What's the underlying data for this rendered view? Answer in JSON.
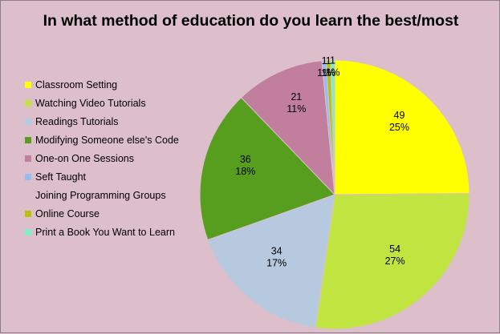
{
  "chart_data": {
    "type": "pie",
    "title": "In what method of education do you learn the best/most",
    "legend_position": "left",
    "slices": [
      {
        "name": "Classroom Setting",
        "value": 49,
        "percent": "25%",
        "color": "#ffff00",
        "value_label": "49",
        "percent_label": "25%"
      },
      {
        "name": "Watching Video Tutorials",
        "value": 54,
        "percent": "27%",
        "color": "#c0e540",
        "value_label": "54",
        "percent_label": "27%"
      },
      {
        "name": "Readings Tutorials",
        "value": 34,
        "percent": "17%",
        "color": "#b7c9df",
        "value_label": "34",
        "percent_label": "17%"
      },
      {
        "name": "Modifying Someone else's Code",
        "value": 36,
        "percent": "18%",
        "color": "#579e1e",
        "value_label": "36",
        "percent_label": "18%"
      },
      {
        "name": "One-on One Sessions",
        "value": 21,
        "percent": "11%",
        "color": "#c17e9d",
        "value_label": "21",
        "percent_label": "11%"
      },
      {
        "name": "Seft Taught",
        "value": 1,
        "percent": "1%",
        "color": "#93bff0",
        "value_label": "1",
        "percent_label": "1%"
      },
      {
        "name": "Joining Programming Groups",
        "value": 0,
        "percent": "0%",
        "color": "#dcbfca",
        "value_label": "",
        "percent_label": ""
      },
      {
        "name": "Online Course",
        "value": 1,
        "percent": "1%",
        "color": "#b5c40a",
        "value_label": "1",
        "percent_label": "1%"
      },
      {
        "name": "Print a Book You Want to Learn",
        "value": 1,
        "percent": "1%",
        "color": "#7ff0c2",
        "value_label": "1",
        "percent_label": "1%"
      }
    ]
  }
}
